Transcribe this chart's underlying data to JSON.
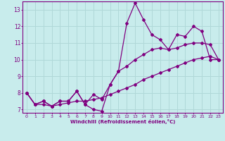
{
  "xlabel": "Windchill (Refroidissement éolien,°C)",
  "bg_color": "#c8ecec",
  "line_color": "#800080",
  "grid_color": "#b0d8d8",
  "text_color": "#800080",
  "xlim": [
    -0.5,
    23.5
  ],
  "ylim": [
    6.8,
    13.5
  ],
  "yticks": [
    7,
    8,
    9,
    10,
    11,
    12,
    13
  ],
  "xticks": [
    0,
    1,
    2,
    3,
    4,
    5,
    6,
    7,
    8,
    9,
    10,
    11,
    12,
    13,
    14,
    15,
    16,
    17,
    18,
    19,
    20,
    21,
    22,
    23
  ],
  "line1_x": [
    0,
    1,
    2,
    3,
    4,
    5,
    6,
    7,
    8,
    9,
    10,
    11,
    12,
    13,
    14,
    15,
    16,
    17,
    18,
    19,
    20,
    21,
    22,
    23
  ],
  "line1_y": [
    8.0,
    7.3,
    7.5,
    7.2,
    7.5,
    7.5,
    8.1,
    7.3,
    7.0,
    6.9,
    8.5,
    9.3,
    12.2,
    13.4,
    12.4,
    11.5,
    11.2,
    10.6,
    11.5,
    11.4,
    12.0,
    11.7,
    10.0,
    10.0
  ],
  "line2_x": [
    0,
    1,
    2,
    3,
    4,
    5,
    6,
    7,
    8,
    9,
    10,
    11,
    12,
    13,
    14,
    15,
    16,
    17,
    18,
    19,
    20,
    21,
    22,
    23
  ],
  "line2_y": [
    8.0,
    7.3,
    7.5,
    7.2,
    7.5,
    7.5,
    8.1,
    7.3,
    7.9,
    7.6,
    8.5,
    9.3,
    9.6,
    10.0,
    10.3,
    10.6,
    10.7,
    10.6,
    10.7,
    10.9,
    11.0,
    11.0,
    10.9,
    10.0
  ],
  "line3_x": [
    0,
    1,
    2,
    3,
    4,
    5,
    6,
    7,
    8,
    9,
    10,
    11,
    12,
    13,
    14,
    15,
    16,
    17,
    18,
    19,
    20,
    21,
    22,
    23
  ],
  "line3_y": [
    8.0,
    7.3,
    7.3,
    7.2,
    7.3,
    7.4,
    7.5,
    7.5,
    7.6,
    7.7,
    7.9,
    8.1,
    8.3,
    8.5,
    8.8,
    9.0,
    9.2,
    9.4,
    9.6,
    9.8,
    10.0,
    10.1,
    10.2,
    10.0
  ]
}
